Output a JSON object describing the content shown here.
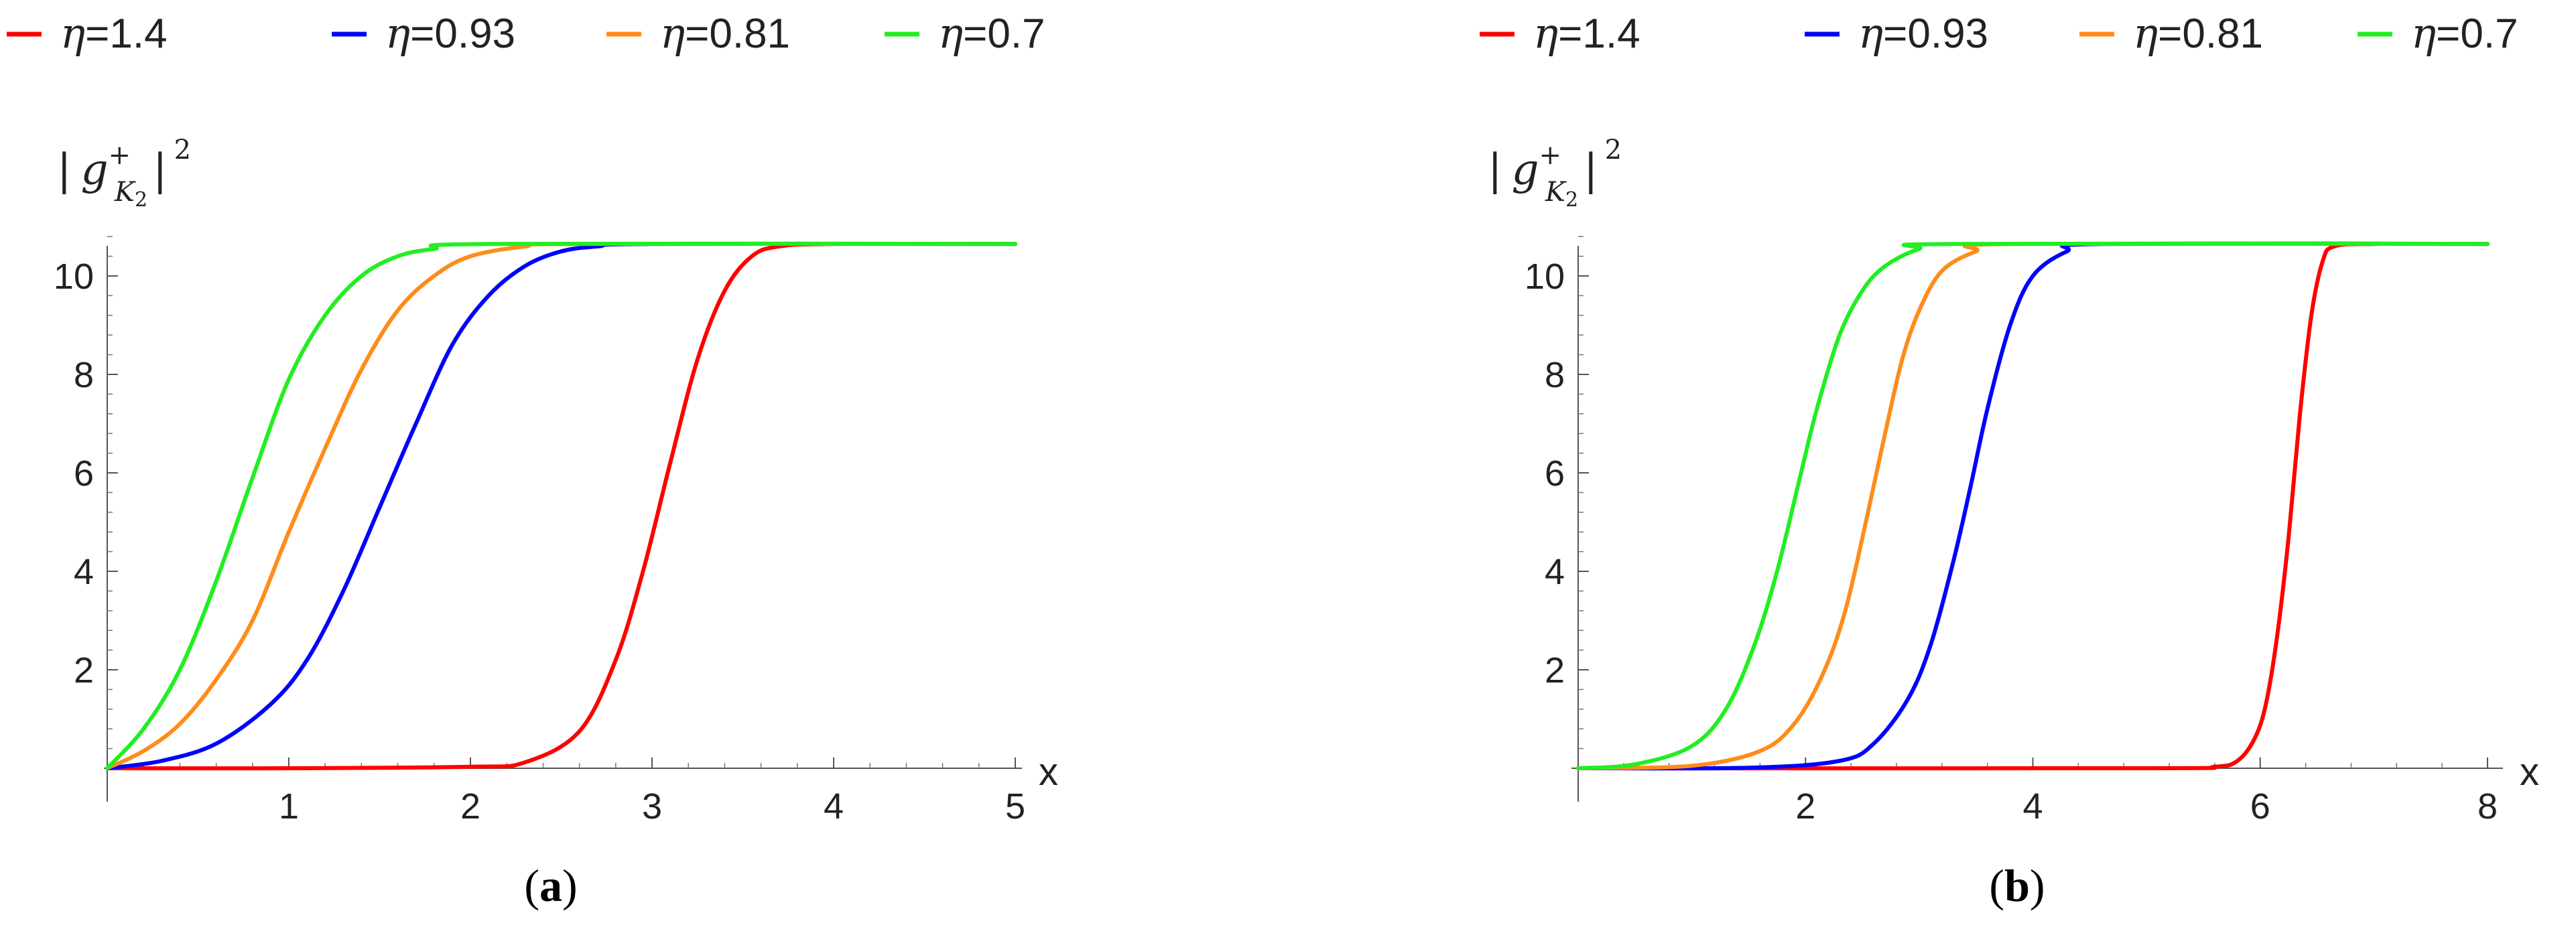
{
  "chart_data": [
    {
      "type": "line",
      "panel_label": "a",
      "ylabel": {
        "bar_left": "|",
        "base": "g",
        "superscript": "+",
        "subscript": "K",
        "subscript_index": "2",
        "bar_right": "|",
        "power": "2"
      },
      "xlabel": "x",
      "xlim": [
        0,
        5
      ],
      "ylim": [
        0,
        11
      ],
      "xticks": [
        1,
        2,
        3,
        4,
        5
      ],
      "yticks": [
        2,
        4,
        6,
        8,
        10
      ],
      "legend_position": "top",
      "series": [
        {
          "name": "η=1.4",
          "legend_greek": "η",
          "legend_value": "=1.4",
          "color": "#ff0000",
          "x": [
            0,
            1.0,
            2.0,
            2.3,
            2.6,
            2.8,
            2.95,
            3.1,
            3.25,
            3.4,
            3.55,
            3.7,
            4.0,
            5.0
          ],
          "y": [
            0,
            0,
            0.03,
            0.12,
            0.75,
            2.2,
            4.0,
            6.2,
            8.3,
            9.7,
            10.4,
            10.6,
            10.65,
            10.65
          ]
        },
        {
          "name": "η=0.93",
          "legend_greek": "η",
          "legend_value": "=0.93",
          "color": "#0000ff",
          "x": [
            0,
            0.3,
            0.6,
            0.9,
            1.1,
            1.3,
            1.5,
            1.7,
            1.9,
            2.1,
            2.3,
            2.5,
            2.7,
            3.0,
            5.0
          ],
          "y": [
            0,
            0.15,
            0.5,
            1.3,
            2.2,
            3.6,
            5.3,
            7.0,
            8.6,
            9.6,
            10.2,
            10.5,
            10.6,
            10.65,
            10.65
          ]
        },
        {
          "name": "η=0.81",
          "legend_greek": "η",
          "legend_value": "=0.81",
          "color": "#ff8c1a",
          "x": [
            0,
            0.2,
            0.4,
            0.6,
            0.8,
            1.0,
            1.2,
            1.4,
            1.6,
            1.8,
            2.0,
            2.3,
            2.6,
            5.0
          ],
          "y": [
            0,
            0.35,
            0.9,
            1.8,
            3.0,
            4.8,
            6.5,
            8.1,
            9.3,
            10.0,
            10.4,
            10.6,
            10.65,
            10.65
          ]
        },
        {
          "name": "η=0.7",
          "legend_greek": "η",
          "legend_value": "=0.7",
          "color": "#22ee22",
          "x": [
            0,
            0.2,
            0.4,
            0.6,
            0.8,
            1.0,
            1.2,
            1.4,
            1.6,
            1.8,
            2.1,
            5.0
          ],
          "y": [
            0,
            0.8,
            2.0,
            3.8,
            5.9,
            7.9,
            9.2,
            10.0,
            10.4,
            10.55,
            10.65,
            10.65
          ]
        }
      ]
    },
    {
      "type": "line",
      "panel_label": "b",
      "ylabel": {
        "bar_left": "|",
        "base": "g",
        "superscript": "+",
        "subscript": "K",
        "subscript_index": "2",
        "bar_right": "|",
        "power": "2"
      },
      "xlabel": "x",
      "xlim": [
        0,
        8
      ],
      "ylim": [
        0,
        11
      ],
      "xticks": [
        2,
        4,
        6,
        8
      ],
      "yticks": [
        2,
        4,
        6,
        8,
        10
      ],
      "legend_position": "top",
      "series": [
        {
          "name": "η=1.4",
          "legend_greek": "η",
          "legend_value": "=1.4",
          "color": "#ff0000",
          "x": [
            0,
            5.0,
            5.6,
            5.8,
            5.95,
            6.05,
            6.15,
            6.25,
            6.35,
            6.45,
            6.55,
            6.65,
            7.0,
            8.0
          ],
          "y": [
            0,
            0,
            0.03,
            0.15,
            0.6,
            1.3,
            2.7,
            4.7,
            7.2,
            9.2,
            10.3,
            10.6,
            10.65,
            10.65
          ]
        },
        {
          "name": "η=0.93",
          "legend_greek": "η",
          "legend_value": "=0.93",
          "color": "#0000ff",
          "x": [
            0,
            1.5,
            2.3,
            2.6,
            2.9,
            3.1,
            3.3,
            3.45,
            3.6,
            3.8,
            4.0,
            4.3,
            4.6,
            8.0
          ],
          "y": [
            0,
            0.01,
            0.15,
            0.5,
            1.4,
            2.5,
            4.2,
            5.7,
            7.3,
            9.0,
            10.0,
            10.5,
            10.65,
            10.65
          ]
        },
        {
          "name": "η=0.81",
          "legend_greek": "η",
          "legend_value": "=0.81",
          "color": "#ff8c1a",
          "x": [
            0,
            1.0,
            1.6,
            1.9,
            2.15,
            2.35,
            2.55,
            2.7,
            2.85,
            3.0,
            3.2,
            3.5,
            3.8,
            8.0
          ],
          "y": [
            0,
            0.05,
            0.35,
            0.9,
            1.9,
            3.2,
            5.2,
            6.8,
            8.3,
            9.3,
            10.1,
            10.5,
            10.65,
            10.65
          ]
        },
        {
          "name": "η=0.7",
          "legend_greek": "η",
          "legend_value": "=0.7",
          "color": "#22ee22",
          "x": [
            0,
            0.5,
            1.0,
            1.3,
            1.55,
            1.75,
            1.95,
            2.1,
            2.3,
            2.5,
            2.7,
            3.0,
            3.3,
            8.0
          ],
          "y": [
            0,
            0.08,
            0.45,
            1.2,
            2.5,
            4.0,
            5.9,
            7.3,
            8.8,
            9.7,
            10.2,
            10.55,
            10.65,
            10.65
          ]
        }
      ]
    }
  ]
}
